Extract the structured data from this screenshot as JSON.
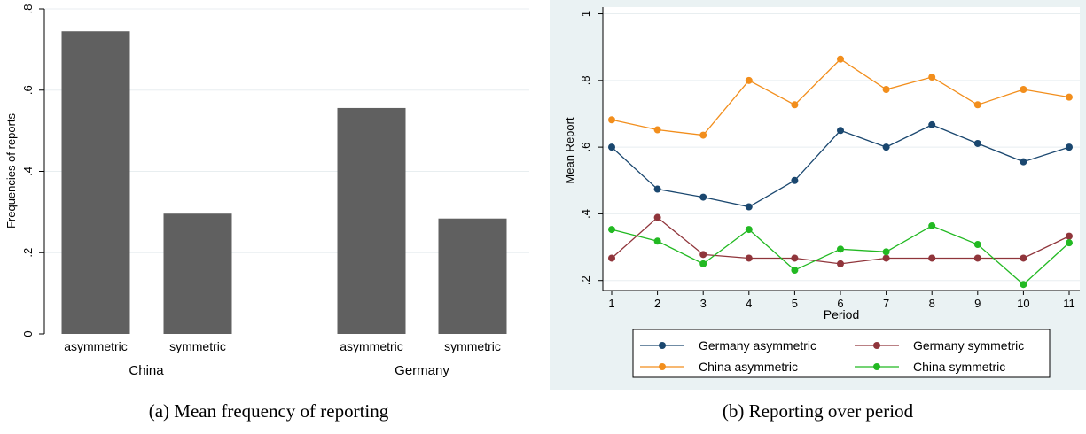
{
  "chart_data": [
    {
      "type": "bar",
      "caption": "(a)  Mean frequency of reporting",
      "ylabel": "Frequencies of reports",
      "ylim": [
        0,
        0.8
      ],
      "yticks": [
        0,
        0.2,
        0.4,
        0.6,
        0.8
      ],
      "ytick_labels": [
        "0",
        ".2",
        ".4",
        ".6",
        ".8"
      ],
      "grid": true,
      "bar_color": "#606060",
      "groups": [
        {
          "label": "China",
          "categories": [
            "asymmetric",
            "symmetric"
          ],
          "values": [
            0.745,
            0.296
          ]
        },
        {
          "label": "Germany",
          "categories": [
            "asymmetric",
            "symmetric"
          ],
          "values": [
            0.556,
            0.284
          ]
        }
      ]
    },
    {
      "type": "line",
      "caption": "(b)  Reporting over period",
      "xlabel": "Period",
      "ylabel": "Mean Report",
      "x": [
        1,
        2,
        3,
        4,
        5,
        6,
        7,
        8,
        9,
        10,
        11
      ],
      "xlim": [
        1,
        11
      ],
      "ylim": [
        0.17,
        1.02
      ],
      "yticks": [
        0.2,
        0.4,
        0.6,
        0.8,
        1
      ],
      "ytick_labels": [
        ".2",
        ".4",
        ".6",
        ".8",
        "1"
      ],
      "grid": true,
      "legend_position": "bottom",
      "background": "#eaf2f3",
      "series": [
        {
          "name": "Germany asymmetric",
          "color": "#1a476f",
          "values": [
            0.6,
            0.474,
            0.45,
            0.421,
            0.5,
            0.65,
            0.6,
            0.667,
            0.611,
            0.556,
            0.6
          ]
        },
        {
          "name": "Germany symmetric",
          "color": "#90353b",
          "values": [
            0.267,
            0.389,
            0.278,
            0.267,
            0.267,
            0.25,
            0.267,
            0.267,
            0.267,
            0.267,
            0.333
          ]
        },
        {
          "name": "China asymmetric",
          "color": "#f28e1c",
          "values": [
            0.682,
            0.652,
            0.636,
            0.8,
            0.727,
            0.864,
            0.773,
            0.81,
            0.727,
            0.773,
            0.75
          ]
        },
        {
          "name": "China symmetric",
          "color": "#22b922",
          "values": [
            0.353,
            0.318,
            0.25,
            0.353,
            0.231,
            0.294,
            0.286,
            0.364,
            0.308,
            0.188,
            0.313
          ]
        }
      ]
    }
  ]
}
